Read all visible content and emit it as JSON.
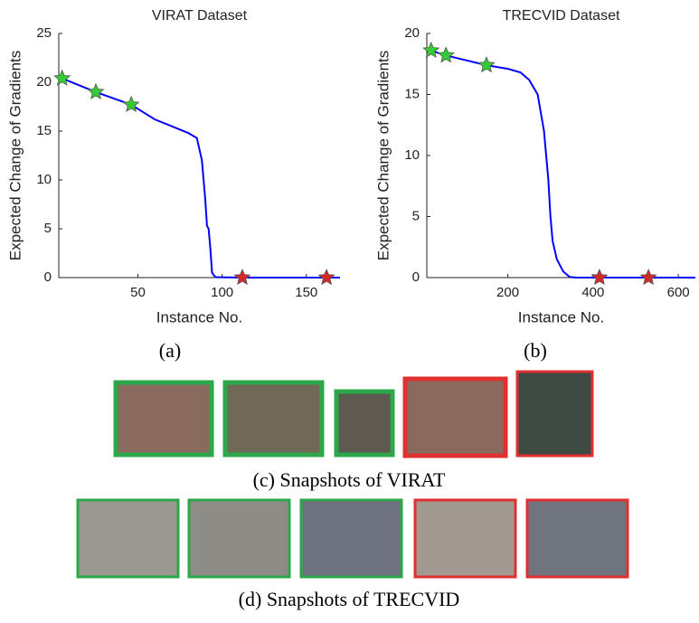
{
  "chart_data": [
    {
      "type": "line",
      "title": "VIRAT Dataset",
      "x_label": "Instance No.",
      "y_label": "Expected Change of Gradients",
      "x": [
        5,
        25,
        46,
        60,
        70,
        80,
        85,
        88,
        90,
        91,
        92,
        93,
        94,
        96,
        110,
        170
      ],
      "series": [
        {
          "color": "#0000ff",
          "values": [
            20.4,
            19.0,
            17.7,
            16.2,
            15.5,
            14.8,
            14.3,
            12,
            8,
            5.3,
            5,
            3,
            0.5,
            0.05,
            0,
            0
          ]
        }
      ],
      "markers": [
        {
          "color": "#33cc33",
          "x": [
            5,
            25,
            46
          ],
          "values": [
            20.4,
            19.0,
            17.7
          ]
        },
        {
          "color": "#d62728",
          "x": [
            112,
            162
          ],
          "values": [
            0,
            0
          ]
        }
      ],
      "xlim": [
        3,
        170
      ],
      "ylim": [
        0,
        25
      ],
      "xticks": [
        50,
        100,
        150
      ],
      "yticks": [
        0,
        5,
        10,
        15,
        20,
        25
      ]
    },
    {
      "type": "line",
      "title": "TRECVID Dataset",
      "x_label": "Instance No.",
      "y_label": "Expected Change of Gradients",
      "x": [
        20,
        55,
        150,
        200,
        230,
        250,
        270,
        285,
        295,
        300,
        305,
        315,
        330,
        345,
        360,
        640
      ],
      "series": [
        {
          "color": "#0000ff",
          "values": [
            18.6,
            18.2,
            17.4,
            17.1,
            16.8,
            16.2,
            15,
            12,
            8,
            5,
            3,
            1.5,
            0.5,
            0.05,
            0,
            0
          ]
        }
      ],
      "markers": [
        {
          "color": "#33cc33",
          "x": [
            20,
            55,
            150
          ],
          "values": [
            18.6,
            18.2,
            17.4
          ]
        },
        {
          "color": "#d62728",
          "x": [
            415,
            530
          ],
          "values": [
            0,
            0
          ]
        }
      ],
      "xlim": [
        10,
        640
      ],
      "ylim": [
        0,
        20
      ],
      "xticks": [
        200,
        400,
        600
      ],
      "yticks": [
        0,
        5,
        10,
        15,
        20
      ]
    }
  ],
  "captions": {
    "a": "(a)",
    "b": "(b)",
    "c": "(c) Snapshots of VIRAT",
    "d": "(d) Snapshots of TRECVID"
  }
}
